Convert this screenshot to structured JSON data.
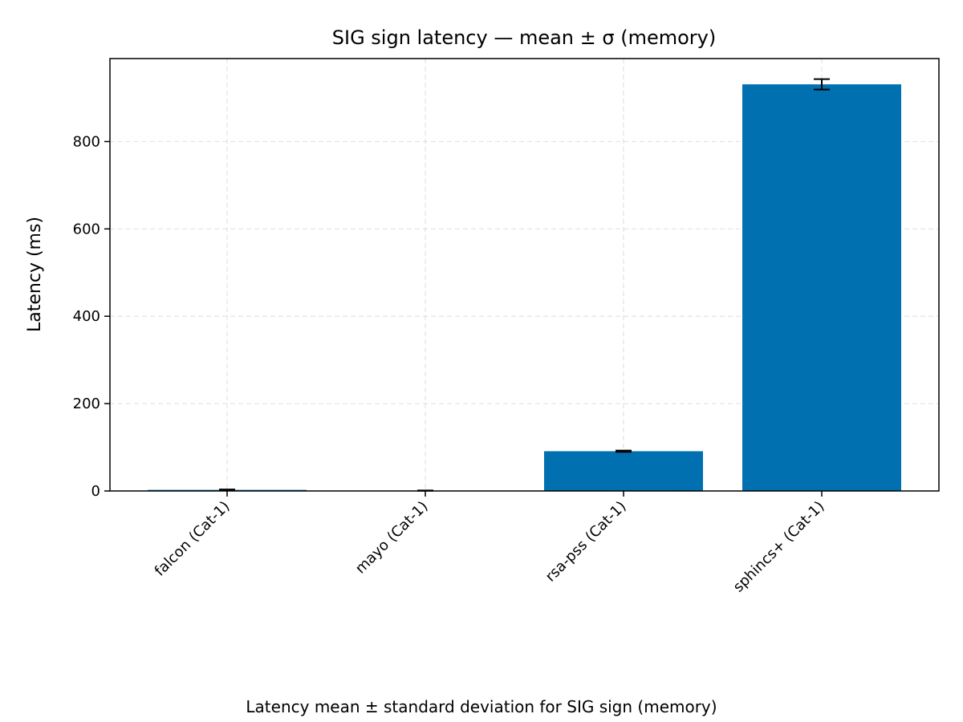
{
  "chart_data": {
    "type": "bar",
    "title": "SIG sign latency — mean ± σ (memory)",
    "ylabel": "Latency (ms)",
    "xlabel": "",
    "caption": "Latency mean ± standard deviation for SIG sign (memory)",
    "categories": [
      "falcon (Cat-1)",
      "mayo (Cat-1)",
      "rsa-pss (Cat-1)",
      "sphincs+ (Cat-1)"
    ],
    "values": [
      2.5,
      0.8,
      91.0,
      931.0
    ],
    "errors": [
      1.0,
      0.3,
      1.5,
      12.0
    ],
    "ylim": [
      0,
      990
    ],
    "yticks": [
      0,
      200,
      400,
      600,
      800
    ],
    "grid": true,
    "bar_color": "#0070b0",
    "error_color": "#000000"
  }
}
